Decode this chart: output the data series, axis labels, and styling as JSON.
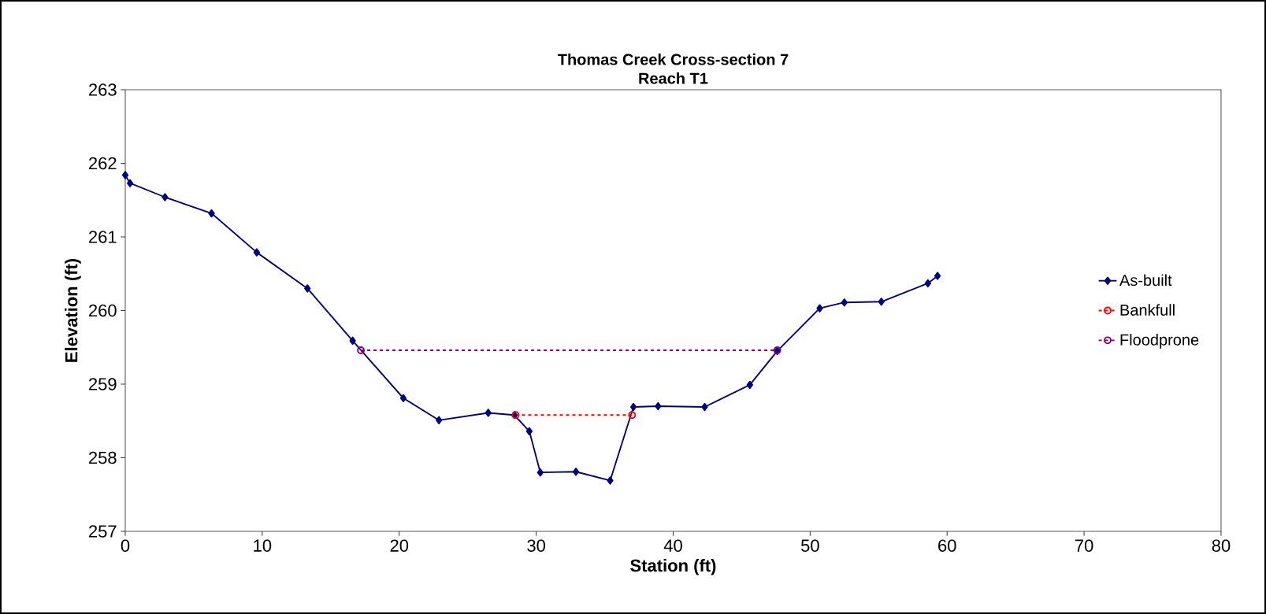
{
  "chart_data": {
    "type": "line",
    "title": "Thomas Creek Cross-section 7",
    "subtitle": "Reach T1",
    "xlabel": "Station (ft)",
    "ylabel": "Elevation (ft)",
    "xlim": [
      0,
      80
    ],
    "xticks": [
      0,
      10,
      20,
      30,
      40,
      50,
      60,
      70,
      80
    ],
    "ylim": [
      257,
      263
    ],
    "yticks": [
      257,
      258,
      259,
      260,
      261,
      262,
      263
    ],
    "grid": false,
    "legend": "right",
    "series": [
      {
        "name": "As-built",
        "color": "#000080",
        "marker": "diamond",
        "line_style": "solid",
        "x": [
          0,
          0.35,
          2.9,
          6.3,
          9.6,
          13.3,
          16.6,
          20.3,
          22.9,
          26.5,
          28.4,
          29.5,
          30.3,
          32.9,
          35.4,
          37.1,
          38.9,
          42.3,
          45.6,
          47.6,
          50.7,
          52.5,
          55.2,
          58.6,
          59.3
        ],
        "values": [
          261.84,
          261.73,
          261.54,
          261.32,
          260.79,
          260.3,
          259.59,
          258.81,
          258.51,
          258.61,
          258.58,
          258.36,
          257.8,
          257.81,
          257.69,
          258.69,
          258.7,
          258.69,
          258.99,
          259.45,
          260.03,
          260.11,
          260.12,
          260.37,
          260.47
        ]
      },
      {
        "name": "Bankfull",
        "color": "#ff0000",
        "marker": "circle",
        "line_style": "dashed",
        "x": [
          28.5,
          37.0
        ],
        "values": [
          258.58,
          258.58
        ]
      },
      {
        "name": "Floodprone",
        "color": "#800080",
        "marker": "circle",
        "line_style": "dashed",
        "x": [
          17.2,
          47.6
        ],
        "values": [
          259.46,
          259.46
        ]
      }
    ]
  }
}
